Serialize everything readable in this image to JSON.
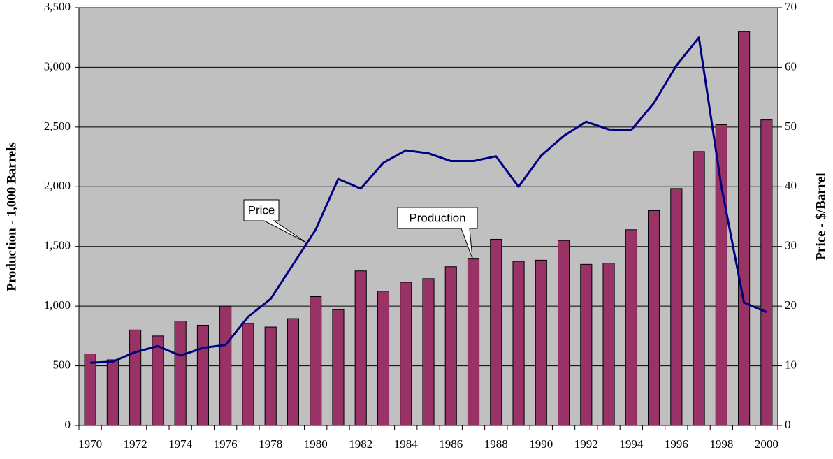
{
  "chart_data": {
    "type": "bar",
    "y_label": "Production - 1,000 Barrels",
    "y2_label": "Price - $/Barrel",
    "categories": [
      "1970",
      null,
      "1972",
      null,
      "1974",
      null,
      "1976",
      null,
      "1978",
      null,
      "1980",
      null,
      "1982",
      null,
      "1984",
      null,
      "1986",
      null,
      "1988",
      null,
      "1990",
      null,
      "1992",
      null,
      "1994",
      null,
      "1996",
      null,
      "1998",
      null,
      "2000"
    ],
    "series": [
      {
        "name": "Production",
        "type": "bar",
        "color": "#993366",
        "values": [
          600,
          550,
          800,
          750,
          875,
          840,
          1000,
          855,
          825,
          895,
          1080,
          970,
          1295,
          1125,
          1200,
          1230,
          1330,
          1395,
          1560,
          1375,
          1385,
          1550,
          1350,
          1360,
          1640,
          1800,
          1985,
          2295,
          2520,
          3300,
          2560
        ]
      },
      {
        "name": "Price",
        "type": "line",
        "axis": "y2",
        "color": "#000080",
        "values": [
          10.5,
          10.7,
          12.3,
          13.3,
          11.7,
          13,
          13.5,
          18.2,
          21.2,
          27,
          32.8,
          41.3,
          39.7,
          44,
          46.1,
          45.6,
          44.3,
          44.3,
          45.1,
          40,
          45.2,
          48.5,
          50.9,
          49.6,
          49.5,
          54,
          60.3,
          65,
          40,
          20.6,
          19
        ]
      }
    ],
    "ylim": [
      0,
      3500
    ],
    "yticks": [
      0,
      500,
      {
        "value": 1000,
        "label": "1,000"
      },
      {
        "value": 1500,
        "label": "1,500"
      },
      {
        "value": 2000,
        "label": "2,000"
      },
      {
        "value": 2500,
        "label": "2,500"
      },
      {
        "value": 3000,
        "label": "3,000"
      },
      {
        "value": 3500,
        "label": "3,500"
      }
    ],
    "y2lim": [
      0,
      70
    ],
    "y2ticks": [
      0,
      10,
      20,
      30,
      40,
      50,
      60,
      70
    ],
    "grid": true,
    "plot_background": "#c0c0c0"
  }
}
